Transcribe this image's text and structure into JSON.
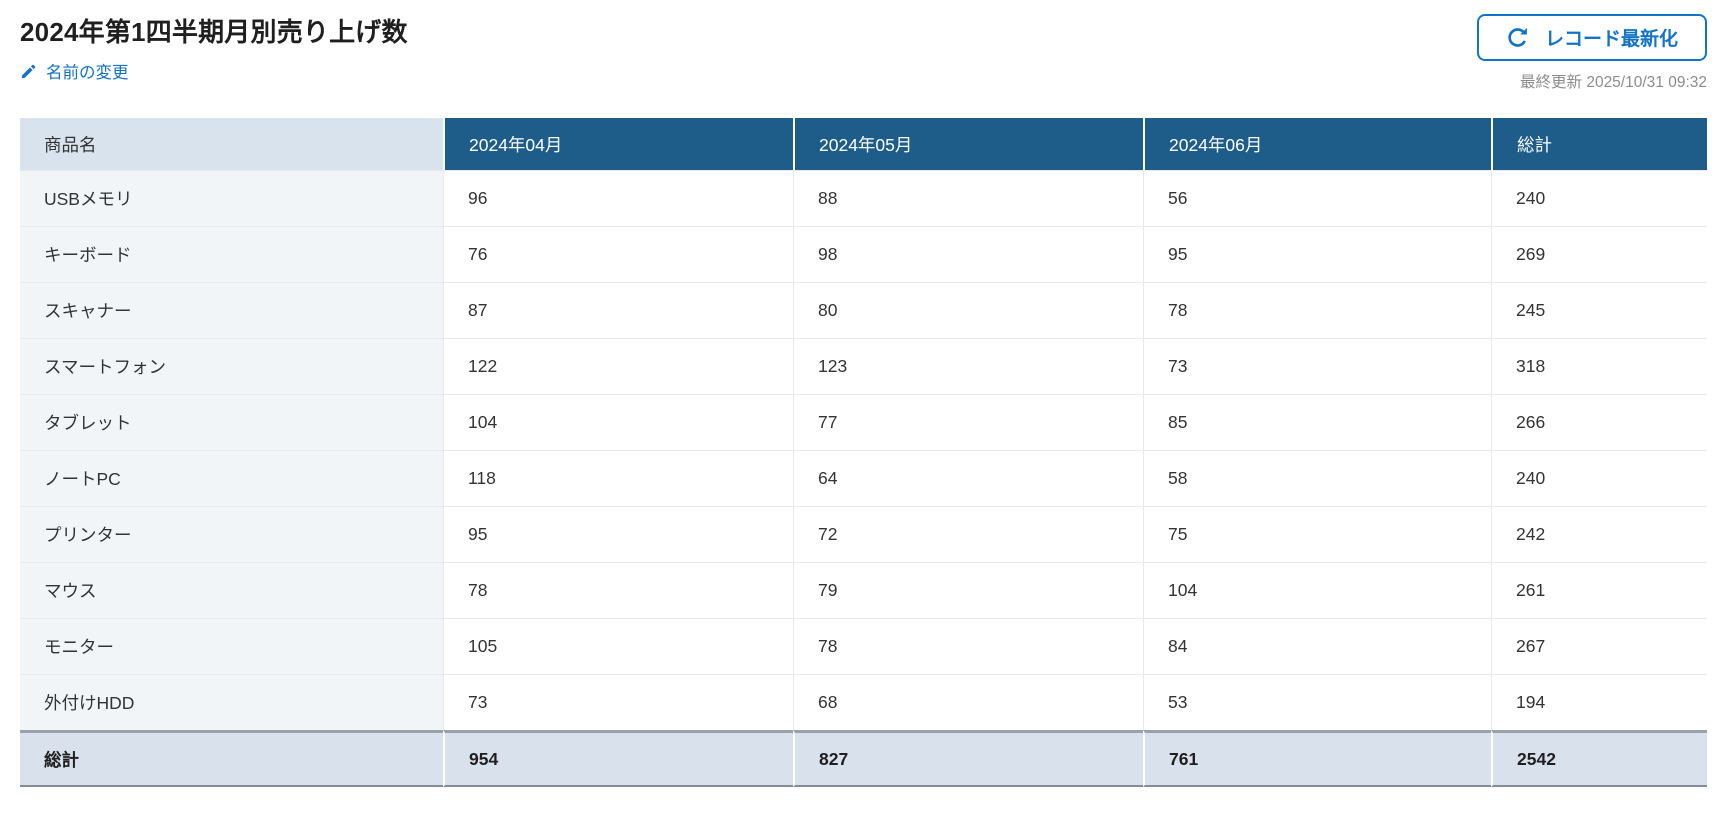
{
  "header": {
    "title": "2024年第1四半期月別売り上げ数",
    "rename_label": "名前の変更",
    "refresh_button_label": "レコード最新化",
    "last_updated": "最終更新 2025/10/31 09:32"
  },
  "icons": {
    "pencil": "pencil-icon",
    "refresh": "refresh-icon"
  },
  "colors": {
    "accent_blue": "#1373c4",
    "month_header_bg": "#1e5c8a",
    "first_header_bg": "#d9e3ed",
    "row_label_bg": "#f2f5f8",
    "total_row_bg": "#d9e2ec",
    "muted_text": "#8c8c8c"
  },
  "chart_data": {
    "type": "table",
    "columns": [
      "商品名",
      "2024年04月",
      "2024年05月",
      "2024年06月",
      "総計"
    ],
    "rows": [
      {
        "label": "USBメモリ",
        "values": [
          96,
          88,
          56,
          240
        ]
      },
      {
        "label": "キーボード",
        "values": [
          76,
          98,
          95,
          269
        ]
      },
      {
        "label": "スキャナー",
        "values": [
          87,
          80,
          78,
          245
        ]
      },
      {
        "label": "スマートフォン",
        "values": [
          122,
          123,
          73,
          318
        ]
      },
      {
        "label": "タブレット",
        "values": [
          104,
          77,
          85,
          266
        ]
      },
      {
        "label": "ノートPC",
        "values": [
          118,
          64,
          58,
          240
        ]
      },
      {
        "label": "プリンター",
        "values": [
          95,
          72,
          75,
          242
        ]
      },
      {
        "label": "マウス",
        "values": [
          78,
          79,
          104,
          261
        ]
      },
      {
        "label": "モニター",
        "values": [
          105,
          78,
          84,
          267
        ]
      },
      {
        "label": "外付けHDD",
        "values": [
          73,
          68,
          53,
          194
        ]
      }
    ],
    "total_row": {
      "label": "総計",
      "values": [
        954,
        827,
        761,
        2542
      ]
    }
  }
}
